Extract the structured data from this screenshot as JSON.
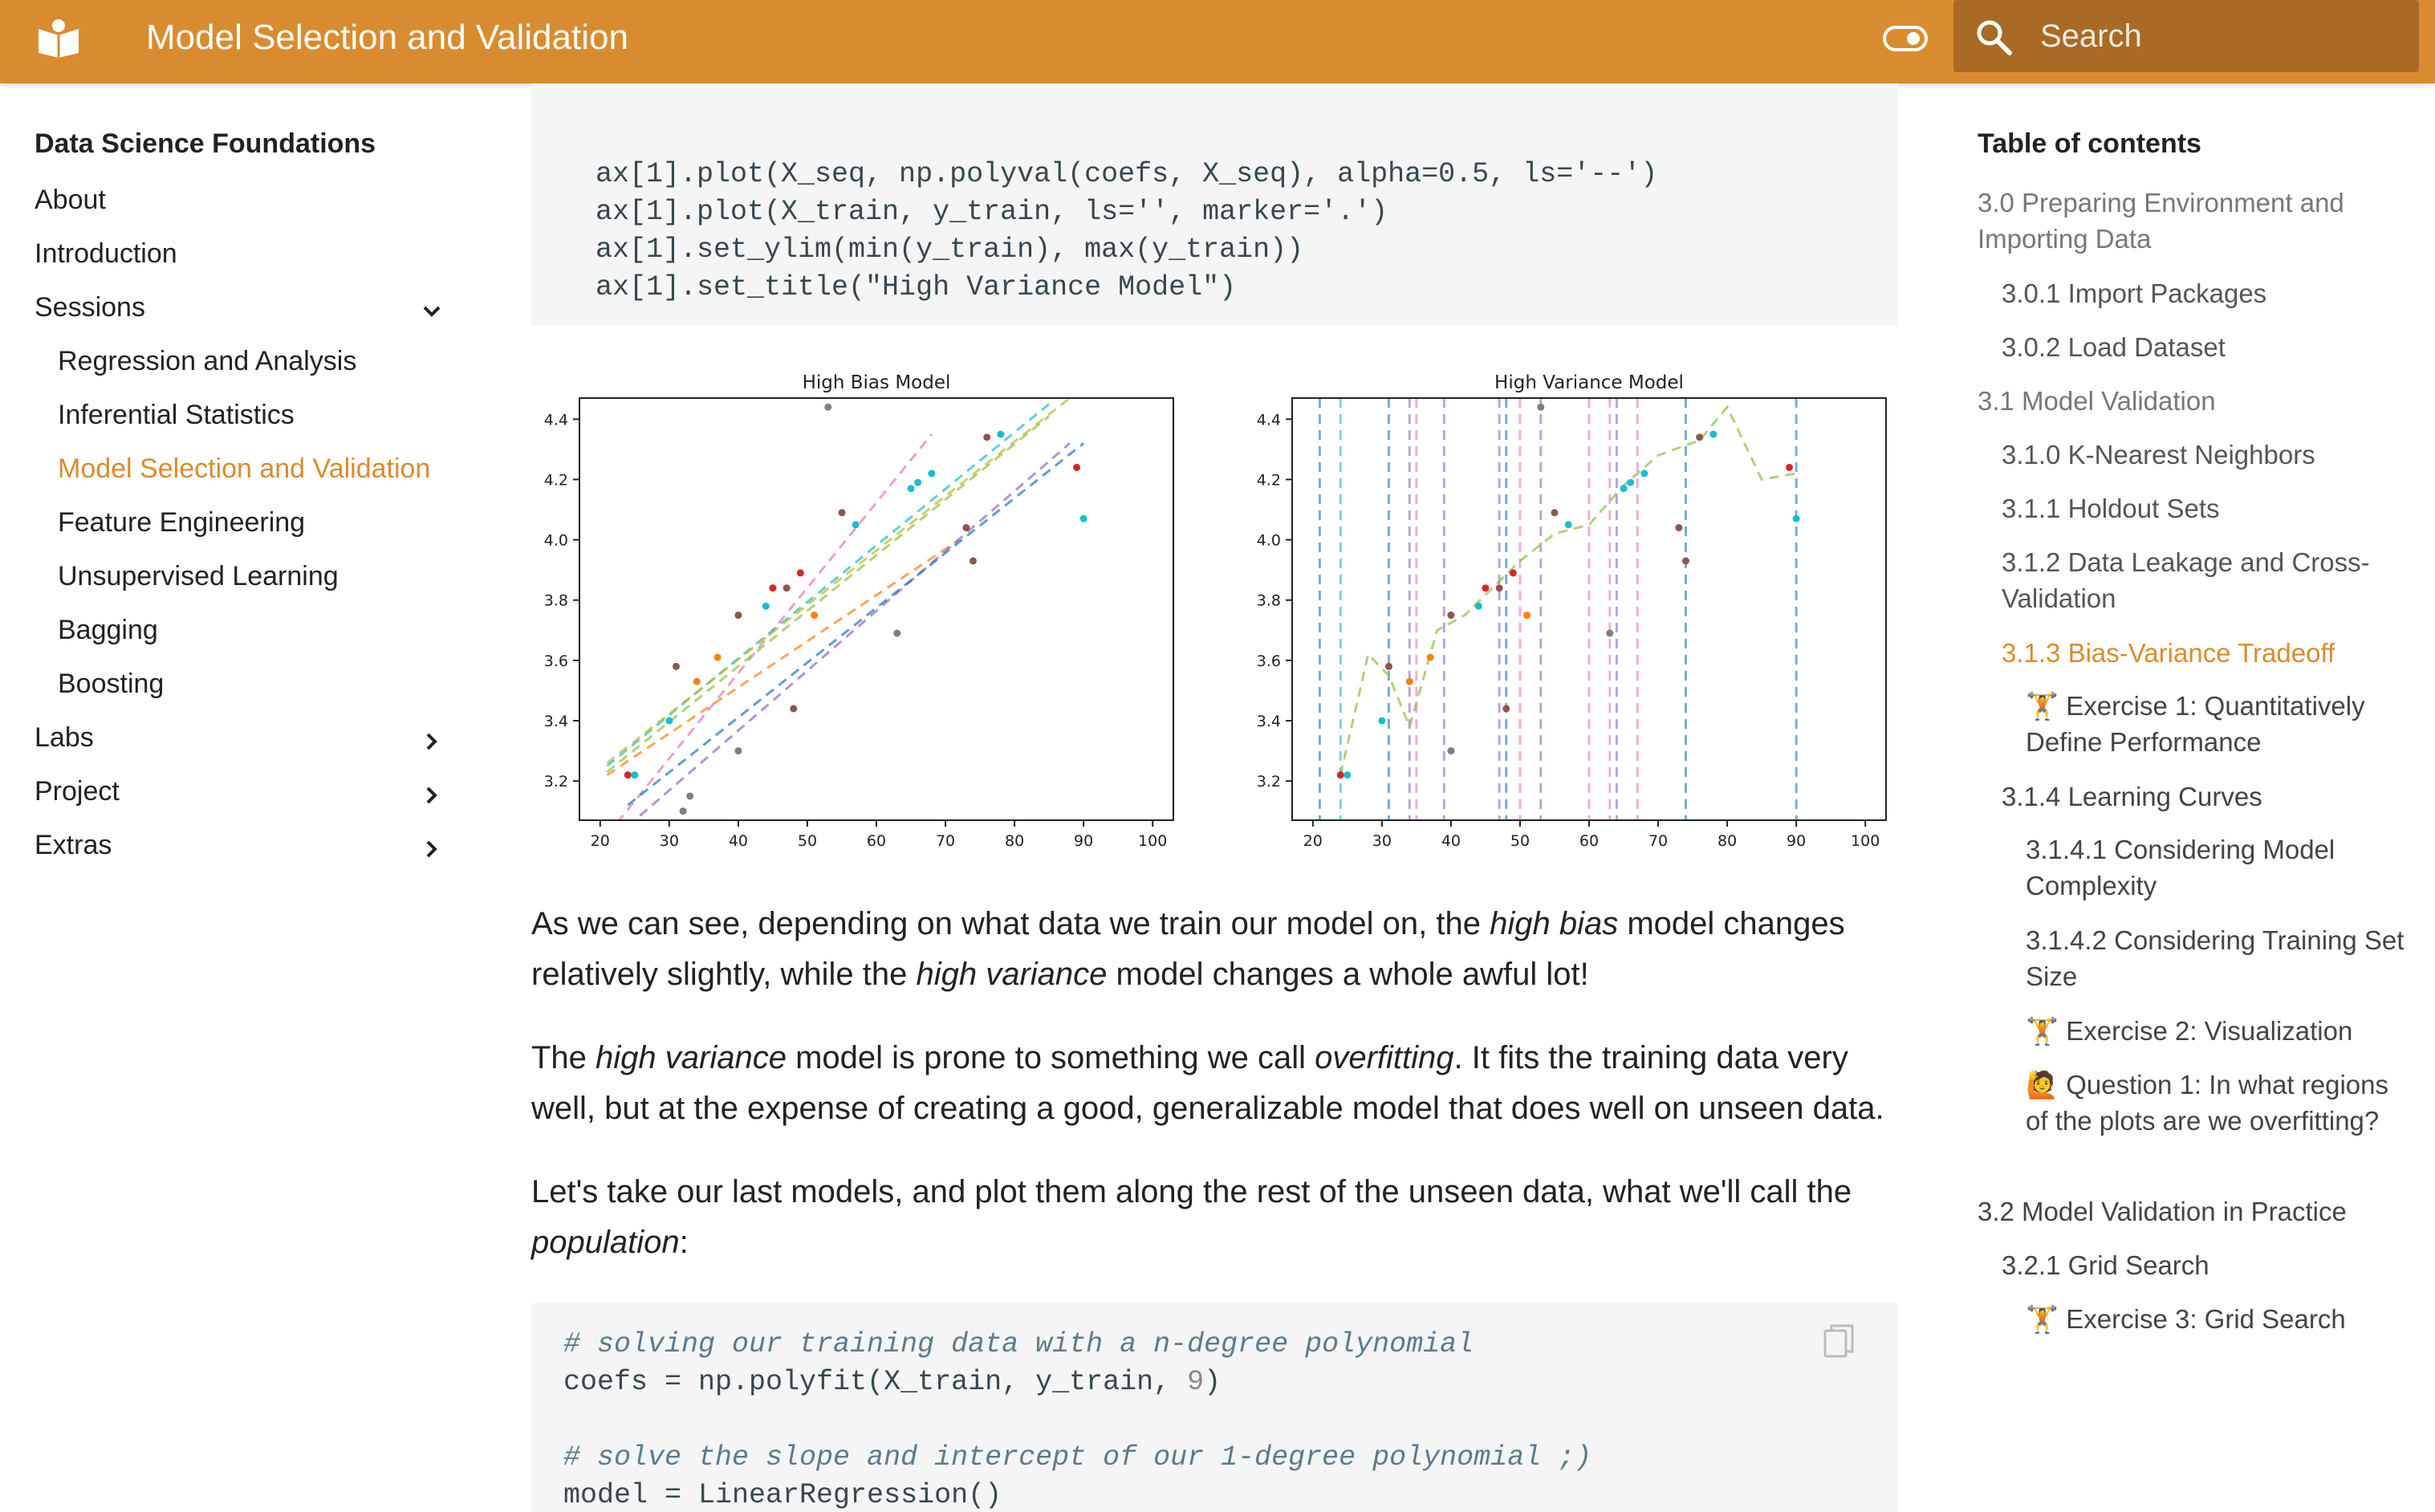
{
  "header": {
    "title": "Model Selection and Validation",
    "search_placeholder": "Search",
    "brand_color": "#d98c2f"
  },
  "nav": {
    "title": "Data Science Foundations",
    "items": [
      {
        "label": "About"
      },
      {
        "label": "Introduction"
      },
      {
        "label": "Sessions",
        "expanded": true
      },
      {
        "label": "Regression and Analysis"
      },
      {
        "label": "Inferential Statistics"
      },
      {
        "label": "Model Selection and Validation",
        "active": true
      },
      {
        "label": "Feature Engineering"
      },
      {
        "label": "Unsupervised Learning"
      },
      {
        "label": "Bagging"
      },
      {
        "label": "Boosting"
      },
      {
        "label": "Labs"
      },
      {
        "label": "Project"
      },
      {
        "label": "Extras"
      }
    ]
  },
  "code_top": [
    "ax[1].plot(X_seq, np.polyval(coefs, X_seq), alpha=0.5, ls='--')",
    "ax[1].plot(X_train, y_train, ls='', marker='.')",
    "ax[1].set_ylim(min(y_train), max(y_train))",
    "ax[1].set_title(\"High Variance Model\")"
  ],
  "chart_data": [
    {
      "type": "line",
      "title": "High Bias Model",
      "xlim": [
        17,
        103
      ],
      "ylim": [
        3.07,
        4.47
      ],
      "xticks": [
        20,
        30,
        40,
        50,
        60,
        70,
        80,
        90,
        100
      ],
      "yticks": [
        3.2,
        3.4,
        3.6,
        3.8,
        4.0,
        4.2,
        4.4
      ],
      "lines": [
        {
          "color": "#e377c2",
          "x": [
            21,
            68
          ],
          "y": [
            3.02,
            4.35
          ]
        },
        {
          "color": "#17becf",
          "x": [
            21,
            85
          ],
          "y": [
            3.25,
            4.45
          ]
        },
        {
          "color": "#bcbd22",
          "x": [
            21,
            88
          ],
          "y": [
            3.26,
            4.47
          ]
        },
        {
          "color": "#8fbf3f",
          "x": [
            21,
            85
          ],
          "y": [
            3.23,
            4.41
          ]
        },
        {
          "color": "#ff7f0e",
          "x": [
            21,
            72
          ],
          "y": [
            3.22,
            4.0
          ]
        },
        {
          "color": "#9467bd",
          "x": [
            24,
            88
          ],
          "y": [
            3.05,
            4.32
          ]
        },
        {
          "color": "#1f77b4",
          "x": [
            24,
            90
          ],
          "y": [
            3.12,
            4.32
          ]
        }
      ],
      "points": [
        {
          "x": 24,
          "y": 3.22,
          "c": "#d62728"
        },
        {
          "x": 25,
          "y": 3.22,
          "c": "#17becf"
        },
        {
          "x": 30,
          "y": 3.4,
          "c": "#17becf"
        },
        {
          "x": 31,
          "y": 3.58,
          "c": "#8c564b"
        },
        {
          "x": 34,
          "y": 3.53,
          "c": "#ff7f0e"
        },
        {
          "x": 37,
          "y": 3.61,
          "c": "#ff7f0e"
        },
        {
          "x": 40,
          "y": 3.3,
          "c": "#7f7f7f"
        },
        {
          "x": 40,
          "y": 3.75,
          "c": "#8c564b"
        },
        {
          "x": 44,
          "y": 3.78,
          "c": "#17becf"
        },
        {
          "x": 45,
          "y": 3.84,
          "c": "#d62728"
        },
        {
          "x": 47,
          "y": 3.84,
          "c": "#8c564b"
        },
        {
          "x": 48,
          "y": 3.44,
          "c": "#8c564b"
        },
        {
          "x": 49,
          "y": 3.89,
          "c": "#d62728"
        },
        {
          "x": 51,
          "y": 3.75,
          "c": "#ff7f0e"
        },
        {
          "x": 53,
          "y": 4.44,
          "c": "#7f7f7f"
        },
        {
          "x": 55,
          "y": 4.09,
          "c": "#8c564b"
        },
        {
          "x": 57,
          "y": 4.05,
          "c": "#17becf"
        },
        {
          "x": 63,
          "y": 3.69,
          "c": "#7f7f7f"
        },
        {
          "x": 65,
          "y": 4.17,
          "c": "#17becf"
        },
        {
          "x": 66,
          "y": 4.19,
          "c": "#17becf"
        },
        {
          "x": 68,
          "y": 4.22,
          "c": "#17becf"
        },
        {
          "x": 73,
          "y": 4.04,
          "c": "#8c564b"
        },
        {
          "x": 74,
          "y": 3.93,
          "c": "#8c564b"
        },
        {
          "x": 76,
          "y": 4.34,
          "c": "#8c564b"
        },
        {
          "x": 78,
          "y": 4.35,
          "c": "#17becf"
        },
        {
          "x": 89,
          "y": 4.24,
          "c": "#d62728"
        },
        {
          "x": 90,
          "y": 4.07,
          "c": "#17becf"
        },
        {
          "x": 33,
          "y": 3.15,
          "c": "#7f7f7f"
        },
        {
          "x": 32,
          "y": 3.1,
          "c": "#7f7f7f"
        }
      ]
    },
    {
      "type": "line",
      "title": "High Variance Model",
      "xlim": [
        17,
        103
      ],
      "ylim": [
        3.07,
        4.47
      ],
      "xticks": [
        20,
        30,
        40,
        50,
        60,
        70,
        80,
        90,
        100
      ],
      "yticks": [
        3.2,
        3.4,
        3.6,
        3.8,
        4.0,
        4.2,
        4.4
      ],
      "vlines": [
        {
          "x": 21,
          "c": "#1f77b4"
        },
        {
          "x": 24,
          "c": "#17becf"
        },
        {
          "x": 31,
          "c": "#1f77b4"
        },
        {
          "x": 34,
          "c": "#9467bd"
        },
        {
          "x": 35,
          "c": "#e377c2"
        },
        {
          "x": 39,
          "c": "#9467bd"
        },
        {
          "x": 47,
          "c": "#9467bd"
        },
        {
          "x": 48,
          "c": "#1f77b4"
        },
        {
          "x": 50,
          "c": "#e377c2"
        },
        {
          "x": 53,
          "c": "#9467bd"
        },
        {
          "x": 60,
          "c": "#e377c2"
        },
        {
          "x": 63,
          "c": "#e377c2"
        },
        {
          "x": 64,
          "c": "#9467bd"
        },
        {
          "x": 67,
          "c": "#e377c2"
        },
        {
          "x": 74,
          "c": "#1f77b4"
        },
        {
          "x": 90,
          "c": "#1f77b4"
        }
      ],
      "curve": [
        {
          "x": 24,
          "y": 3.22
        },
        {
          "x": 28,
          "y": 3.62
        },
        {
          "x": 31,
          "y": 3.55
        },
        {
          "x": 34,
          "y": 3.38
        },
        {
          "x": 38,
          "y": 3.7
        },
        {
          "x": 42,
          "y": 3.75
        },
        {
          "x": 46,
          "y": 3.84
        },
        {
          "x": 50,
          "y": 3.93
        },
        {
          "x": 55,
          "y": 4.02
        },
        {
          "x": 60,
          "y": 4.05
        },
        {
          "x": 65,
          "y": 4.18
        },
        {
          "x": 70,
          "y": 4.28
        },
        {
          "x": 76,
          "y": 4.33
        },
        {
          "x": 80,
          "y": 4.44
        },
        {
          "x": 85,
          "y": 4.2
        },
        {
          "x": 90,
          "y": 4.22
        }
      ],
      "points": [
        {
          "x": 24,
          "y": 3.22,
          "c": "#d62728"
        },
        {
          "x": 25,
          "y": 3.22,
          "c": "#17becf"
        },
        {
          "x": 30,
          "y": 3.4,
          "c": "#17becf"
        },
        {
          "x": 31,
          "y": 3.58,
          "c": "#8c564b"
        },
        {
          "x": 34,
          "y": 3.53,
          "c": "#ff7f0e"
        },
        {
          "x": 37,
          "y": 3.61,
          "c": "#ff7f0e"
        },
        {
          "x": 40,
          "y": 3.3,
          "c": "#7f7f7f"
        },
        {
          "x": 40,
          "y": 3.75,
          "c": "#8c564b"
        },
        {
          "x": 44,
          "y": 3.78,
          "c": "#17becf"
        },
        {
          "x": 45,
          "y": 3.84,
          "c": "#d62728"
        },
        {
          "x": 47,
          "y": 3.84,
          "c": "#8c564b"
        },
        {
          "x": 48,
          "y": 3.44,
          "c": "#8c564b"
        },
        {
          "x": 49,
          "y": 3.89,
          "c": "#d62728"
        },
        {
          "x": 51,
          "y": 3.75,
          "c": "#ff7f0e"
        },
        {
          "x": 53,
          "y": 4.44,
          "c": "#7f7f7f"
        },
        {
          "x": 55,
          "y": 4.09,
          "c": "#8c564b"
        },
        {
          "x": 57,
          "y": 4.05,
          "c": "#17becf"
        },
        {
          "x": 63,
          "y": 3.69,
          "c": "#7f7f7f"
        },
        {
          "x": 65,
          "y": 4.17,
          "c": "#17becf"
        },
        {
          "x": 66,
          "y": 4.19,
          "c": "#17becf"
        },
        {
          "x": 68,
          "y": 4.22,
          "c": "#17becf"
        },
        {
          "x": 73,
          "y": 4.04,
          "c": "#8c564b"
        },
        {
          "x": 74,
          "y": 3.93,
          "c": "#8c564b"
        },
        {
          "x": 76,
          "y": 4.34,
          "c": "#8c564b"
        },
        {
          "x": 78,
          "y": 4.35,
          "c": "#17becf"
        },
        {
          "x": 89,
          "y": 4.24,
          "c": "#d62728"
        },
        {
          "x": 90,
          "y": 4.07,
          "c": "#17becf"
        }
      ]
    }
  ],
  "paragraphs": {
    "p1": [
      "As we can see, depending on what data we train our model on, the ",
      "high bias",
      " model changes relatively slightly, while the ",
      "high variance",
      " model changes a whole awful lot!"
    ],
    "p2": [
      "The ",
      "high variance",
      " model is prone to something we call ",
      "overfitting",
      ". It fits the training data very well, but at the expense of creating a good, generalizable model that does well on unseen data."
    ],
    "p3": [
      "Let's take our last models, and plot them along the rest of the unseen data, what we'll call the ",
      "population",
      ":"
    ]
  },
  "code_bottom": {
    "comment1": "# solving our training data with a n-degree polynomial",
    "line2a": "coefs = np.polyfit(X_train, y_train, ",
    "line2num": "9",
    "line2b": ")",
    "comment2": "# solve the slope and intercept of our 1-degree polynomial ;)",
    "line4": "model = LinearRegression()"
  },
  "toc": {
    "title": "Table of contents",
    "items": [
      {
        "label": "3.0 Preparing Environment and Importing Data"
      },
      {
        "label": "3.0.1 Import Packages"
      },
      {
        "label": "3.0.2 Load Dataset"
      },
      {
        "label": "3.1 Model Validation"
      },
      {
        "label": "3.1.0 K-Nearest Neighbors"
      },
      {
        "label": "3.1.1 Holdout Sets"
      },
      {
        "label": "3.1.2 Data Leakage and Cross-Validation"
      },
      {
        "label": "3.1.3 Bias-Variance Tradeoff",
        "active": true
      },
      {
        "label": "Exercise 1: Quantitatively Define Performance",
        "emoji": "🏋"
      },
      {
        "label": "3.1.4 Learning Curves"
      },
      {
        "label": "3.1.4.1 Considering Model Complexity"
      },
      {
        "label": "3.1.4.2 Considering Training Set Size"
      },
      {
        "label": "Exercise 2: Visualization",
        "emoji": "🏋"
      },
      {
        "label": "Question 1: In what regions of the plots are we overfitting?",
        "emoji": "🙋"
      },
      {
        "label": "3.2 Model Validation in Practice"
      },
      {
        "label": "3.2.1 Grid Search"
      },
      {
        "label": "Exercise 3: Grid Search",
        "emoji": "🏋"
      }
    ]
  }
}
